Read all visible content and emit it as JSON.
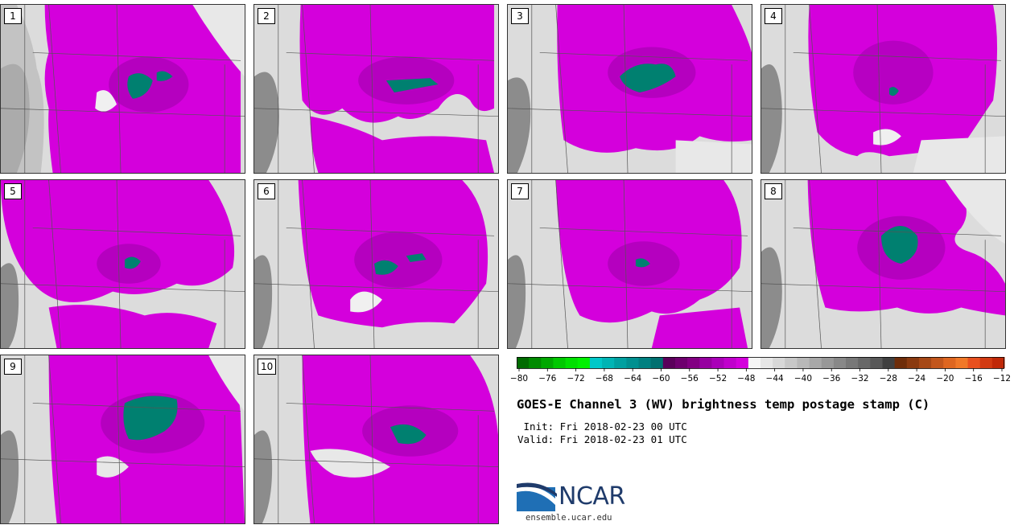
{
  "title": "GOES-E Channel 3 (WV) brightness temp postage stamp (C)",
  "init_label": " Init: Fri 2018-02-23 00 UTC",
  "valid_label": "Valid: Fri 2018-02-23 01 UTC",
  "members": [
    "1",
    "2",
    "3",
    "4",
    "5",
    "6",
    "7",
    "8",
    "9",
    "10"
  ],
  "colorbar": {
    "ticks": [
      "−80",
      "−76",
      "−72",
      "−68",
      "−64",
      "−60",
      "−56",
      "−52",
      "−48",
      "−44",
      "−40",
      "−36",
      "−32",
      "−28",
      "−24",
      "−20",
      "−16",
      "−12"
    ],
    "colors": [
      "#006b00",
      "#008a00",
      "#00a800",
      "#00c800",
      "#00e000",
      "#00f000",
      "#00c8c8",
      "#00b4b4",
      "#00a0a0",
      "#009090",
      "#008080",
      "#007070",
      "#5a005a",
      "#6e006e",
      "#820082",
      "#9600a0",
      "#aa00b8",
      "#c000cc",
      "#d400dc",
      "#f5f5f5",
      "#e6e6e6",
      "#d8d8d8",
      "#c8c8c8",
      "#b8b8b8",
      "#a8a8a8",
      "#989898",
      "#888888",
      "#787878",
      "#686868",
      "#585858",
      "#404040",
      "#6e2d0a",
      "#8a3a10",
      "#a64816",
      "#c2561c",
      "#de6620",
      "#f07828",
      "#e8501e",
      "#d23a12",
      "#c02808"
    ]
  },
  "logo": {
    "name": "NCAR",
    "url": "ensemble.ucar.edu",
    "color": "#1f6fb5"
  },
  "colors": {
    "magenta": "#d400dc",
    "dark_magenta": "#9a00a8",
    "teal": "#008070",
    "border": "#555555"
  }
}
